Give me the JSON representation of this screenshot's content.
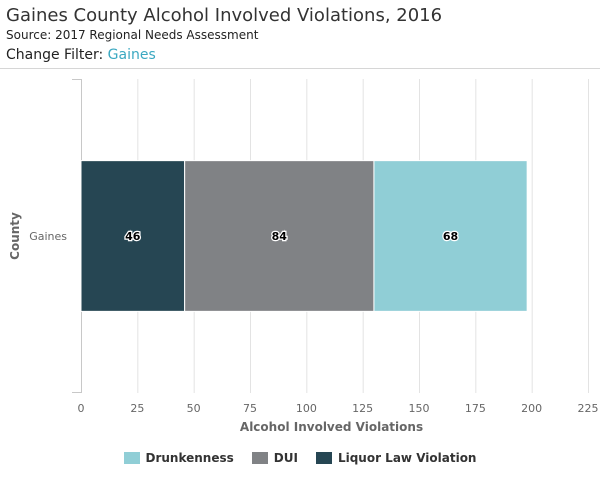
{
  "header": {
    "title": "Gaines County Alcohol Involved Violations, 2016",
    "source": "Source: 2017 Regional Needs Assessment",
    "filter_label": "Change Filter:",
    "filter_value": "Gaines"
  },
  "chart_data": {
    "type": "bar",
    "orientation": "horizontal",
    "stacked": true,
    "xlabel": "Alcohol Involved Violations",
    "ylabel": "County",
    "categories": [
      "Gaines"
    ],
    "xlim": [
      0,
      225
    ],
    "xticks": [
      0,
      25,
      50,
      75,
      100,
      125,
      150,
      175,
      200,
      225
    ],
    "grid": true,
    "legend_position": "bottom",
    "series": [
      {
        "name": "Liquor Law Violation",
        "values": [
          46
        ],
        "color": "#264653"
      },
      {
        "name": "DUI",
        "values": [
          84
        ],
        "color": "#808285"
      },
      {
        "name": "Drunkenness",
        "values": [
          68
        ],
        "color": "#90ced6"
      }
    ],
    "legend_order": [
      "Drunkenness",
      "DUI",
      "Liquor Law Violation"
    ]
  }
}
